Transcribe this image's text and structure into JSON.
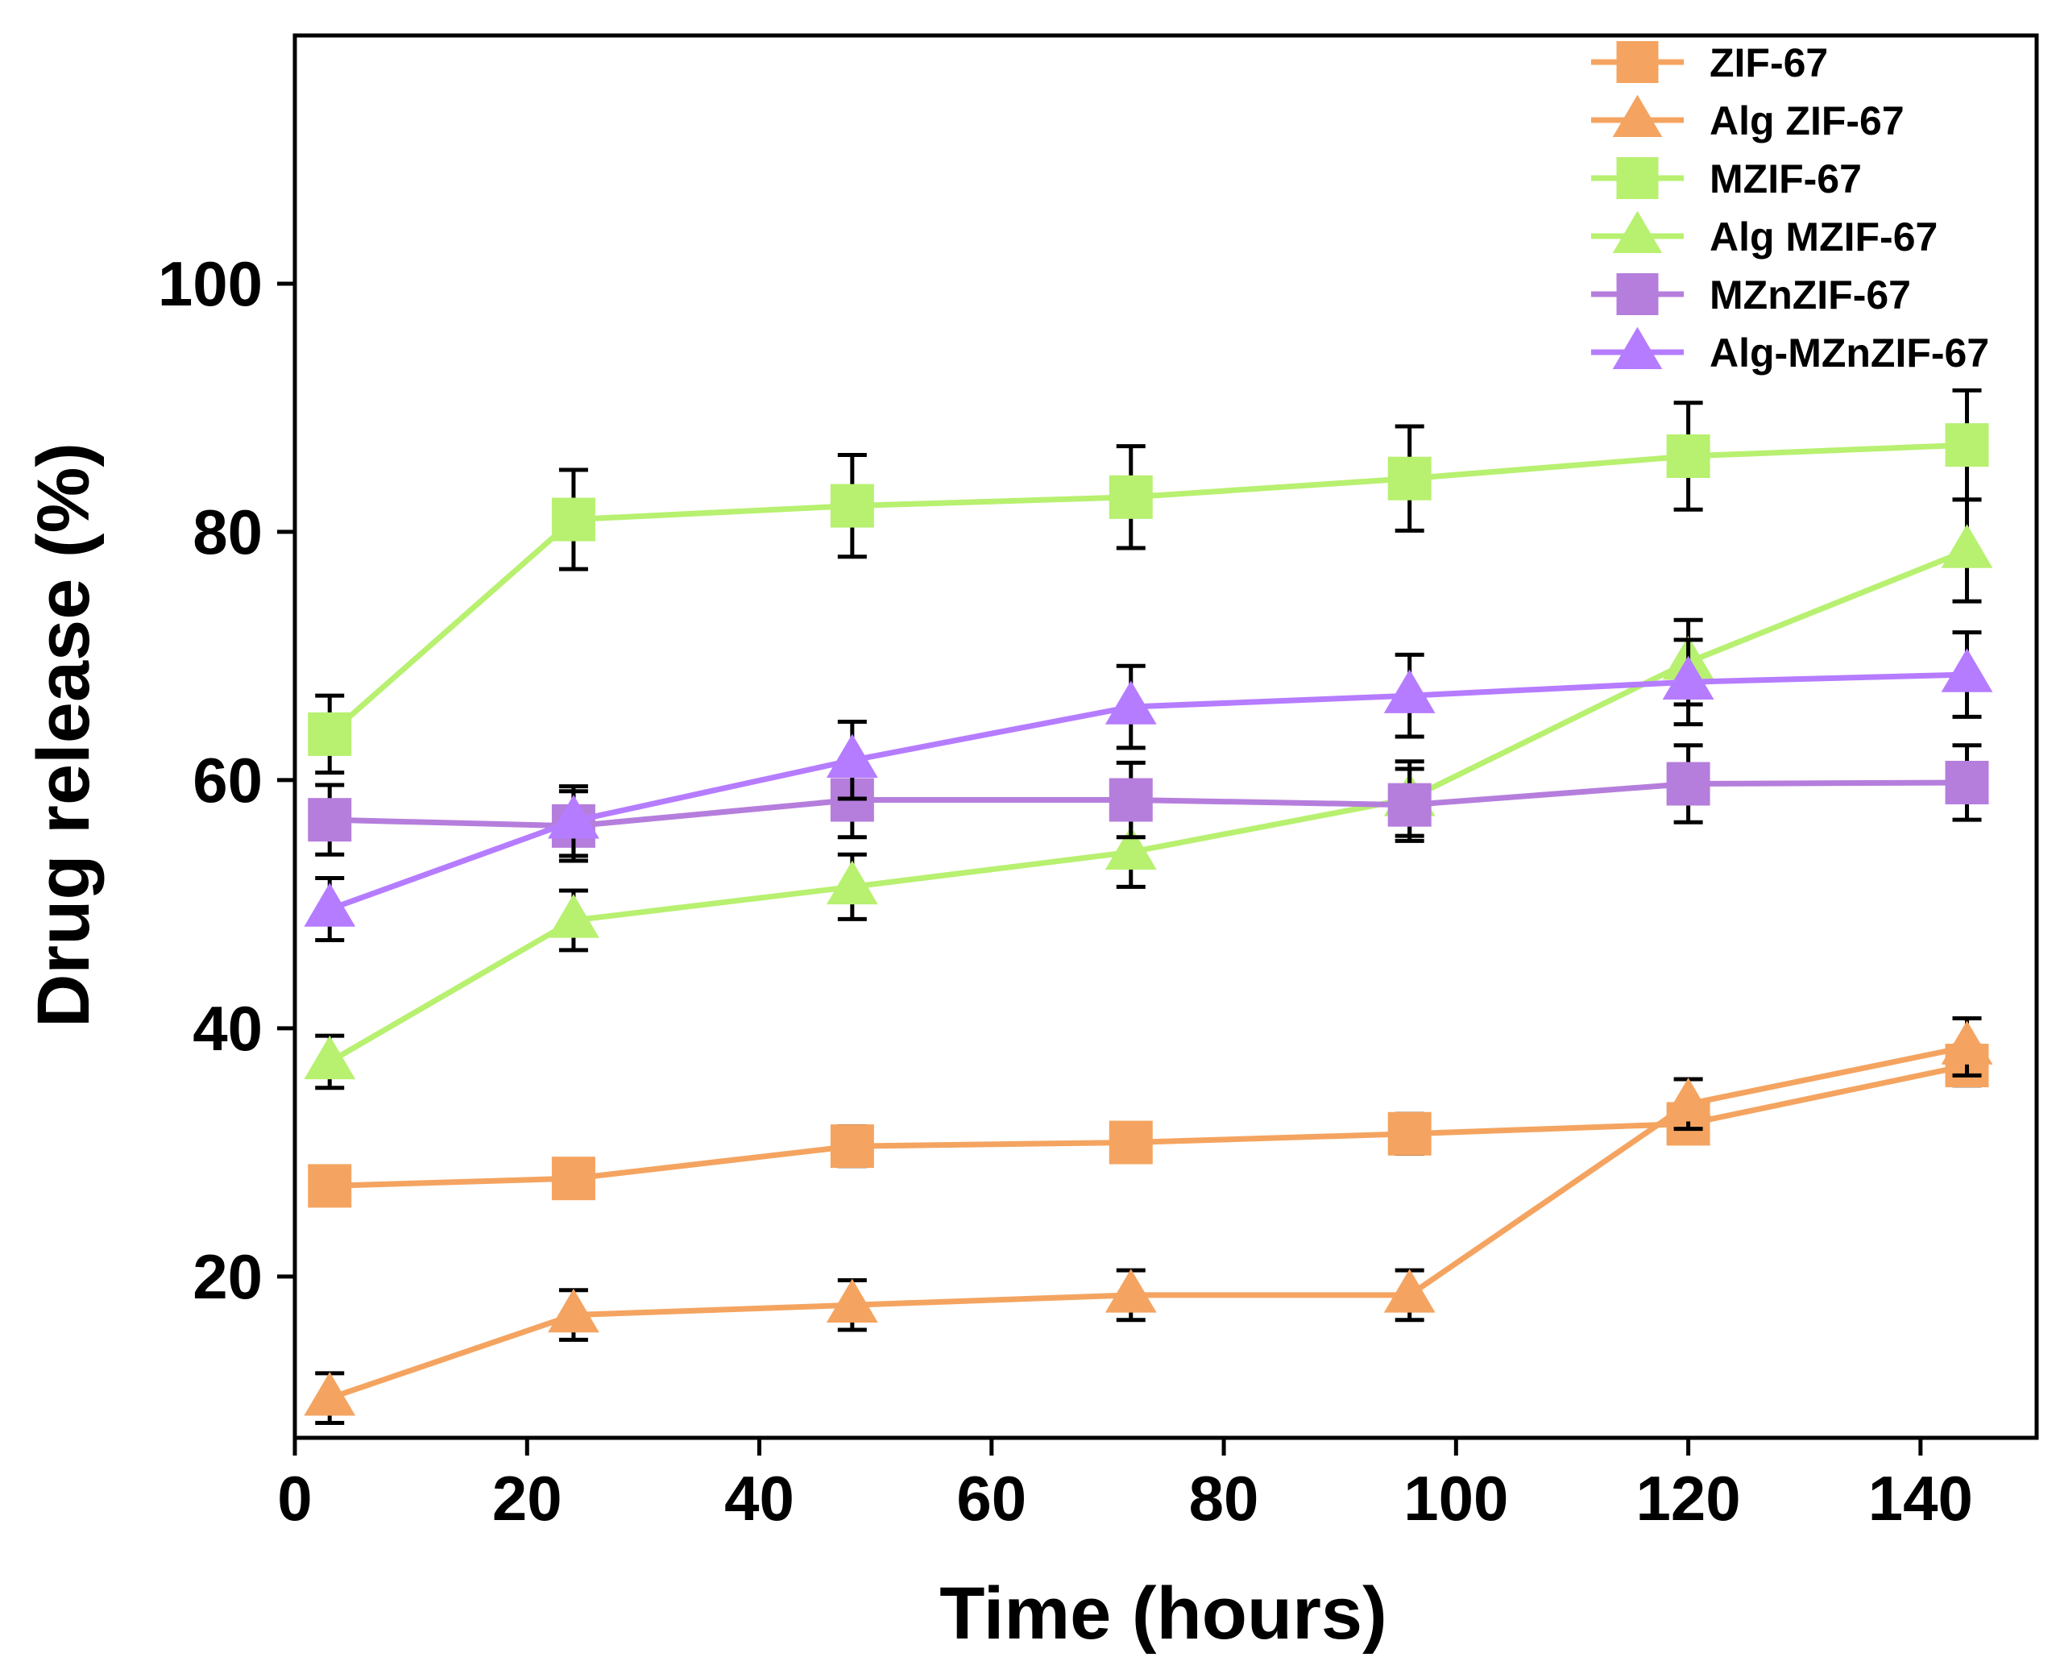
{
  "chart_data": {
    "type": "line",
    "title": "",
    "xlabel": "Time (hours)",
    "ylabel": "Drug release (%)",
    "xlim": [
      0,
      150
    ],
    "ylim": [
      7,
      120
    ],
    "xticks": [
      0,
      20,
      40,
      60,
      80,
      100,
      120,
      140
    ],
    "yticks": [
      20,
      40,
      60,
      80,
      100
    ],
    "grid": false,
    "legend_position": "top-right",
    "x": [
      3,
      24,
      48,
      72,
      96,
      120,
      144
    ],
    "series": [
      {
        "name": "ZIF-67",
        "marker": "square",
        "color": "#f4a460",
        "values": [
          27.3,
          27.9,
          30.5,
          30.8,
          31.5,
          32.3,
          37.0
        ],
        "errors": [
          1.4,
          1.5,
          1.6,
          1.5,
          1.6,
          1.5,
          1.6
        ]
      },
      {
        "name": "Alg ZIF-67",
        "marker": "triangle",
        "color": "#f4a460",
        "values": [
          10.2,
          16.9,
          17.7,
          18.5,
          18.5,
          33.9,
          38.5
        ],
        "errors": [
          2.0,
          2.0,
          2.0,
          2.0,
          2.0,
          2.0,
          2.3
        ]
      },
      {
        "name": "MZIF-67",
        "marker": "square",
        "color": "#b8f070",
        "values": [
          63.7,
          81.0,
          82.1,
          82.8,
          84.3,
          86.1,
          87.0
        ],
        "errors": [
          3.1,
          4.0,
          4.1,
          4.1,
          4.2,
          4.3,
          4.4
        ]
      },
      {
        "name": "Alg MZIF-67",
        "marker": "triangle",
        "color": "#b8f070",
        "values": [
          37.3,
          48.7,
          51.4,
          54.2,
          58.5,
          69.5,
          78.5
        ],
        "errors": [
          2.1,
          2.4,
          2.6,
          2.8,
          3.0,
          3.4,
          4.1
        ]
      },
      {
        "name": "MZnZIF-67",
        "marker": "square",
        "color": "#b57edc",
        "values": [
          56.8,
          56.3,
          58.4,
          58.4,
          58.0,
          59.7,
          59.8
        ],
        "errors": [
          2.8,
          2.8,
          3.0,
          3.0,
          2.9,
          3.1,
          3.0
        ]
      },
      {
        "name": "Alg-MZnZIF-67",
        "marker": "triangle",
        "color": "#b57cff",
        "values": [
          49.6,
          56.7,
          61.6,
          65.9,
          66.8,
          67.9,
          68.5
        ],
        "errors": [
          2.5,
          2.8,
          3.1,
          3.3,
          3.3,
          3.4,
          3.4
        ]
      }
    ]
  }
}
